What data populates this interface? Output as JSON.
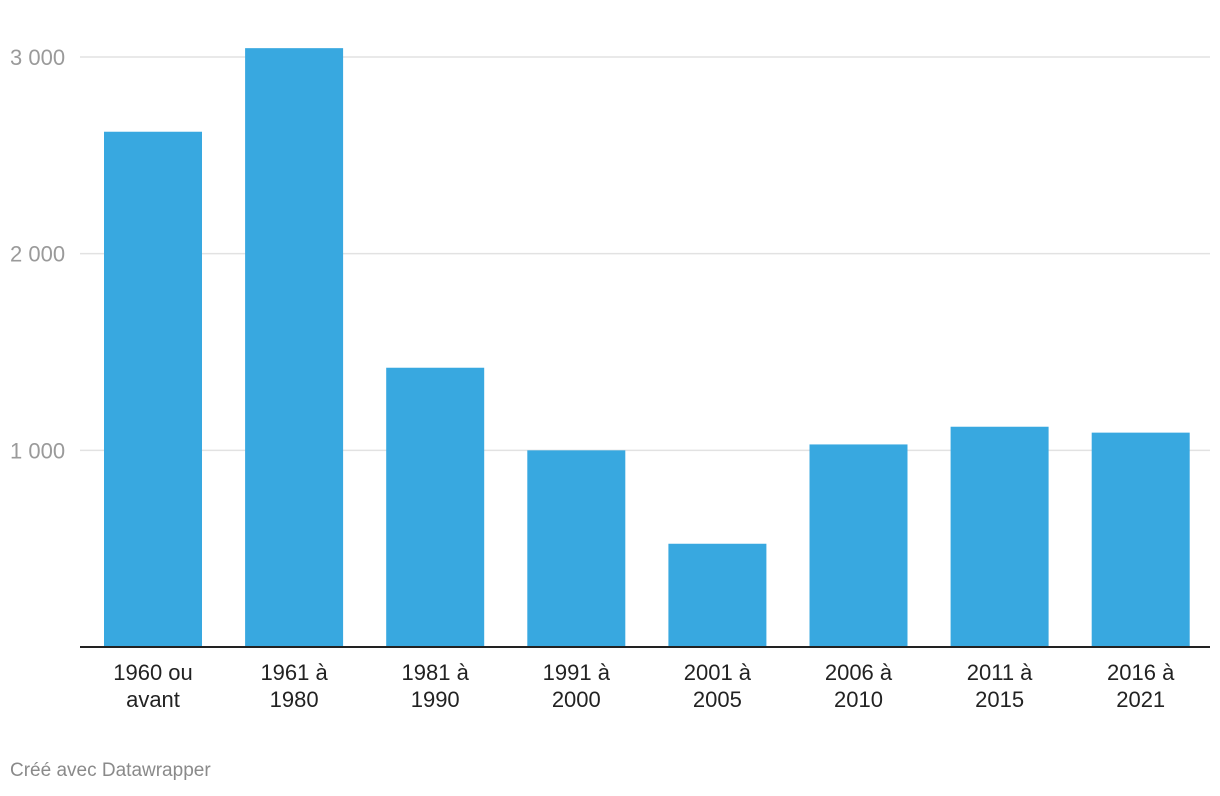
{
  "chart_data": {
    "type": "bar",
    "categories": [
      [
        "1960 ou",
        "avant"
      ],
      [
        "1961 à",
        "1980"
      ],
      [
        "1981 à",
        "1990"
      ],
      [
        "1991 à",
        "2000"
      ],
      [
        "2001 à",
        "2005"
      ],
      [
        "2006 à",
        "2010"
      ],
      [
        "2011 à",
        "2015"
      ],
      [
        "2016 à",
        "2021"
      ]
    ],
    "values": [
      2620,
      3045,
      1420,
      1000,
      525,
      1030,
      1120,
      1090
    ],
    "yticks": [
      {
        "value": 1000,
        "label": "1 000"
      },
      {
        "value": 2000,
        "label": "2 000"
      },
      {
        "value": 3000,
        "label": "3 000"
      }
    ],
    "ylim": [
      0,
      3000
    ],
    "grid": true,
    "bar_color": "#38a8e0",
    "gridline_color": "#e2e2e2",
    "baseline_color": "#222222"
  },
  "footer": {
    "credit": "Créé avec Datawrapper"
  }
}
